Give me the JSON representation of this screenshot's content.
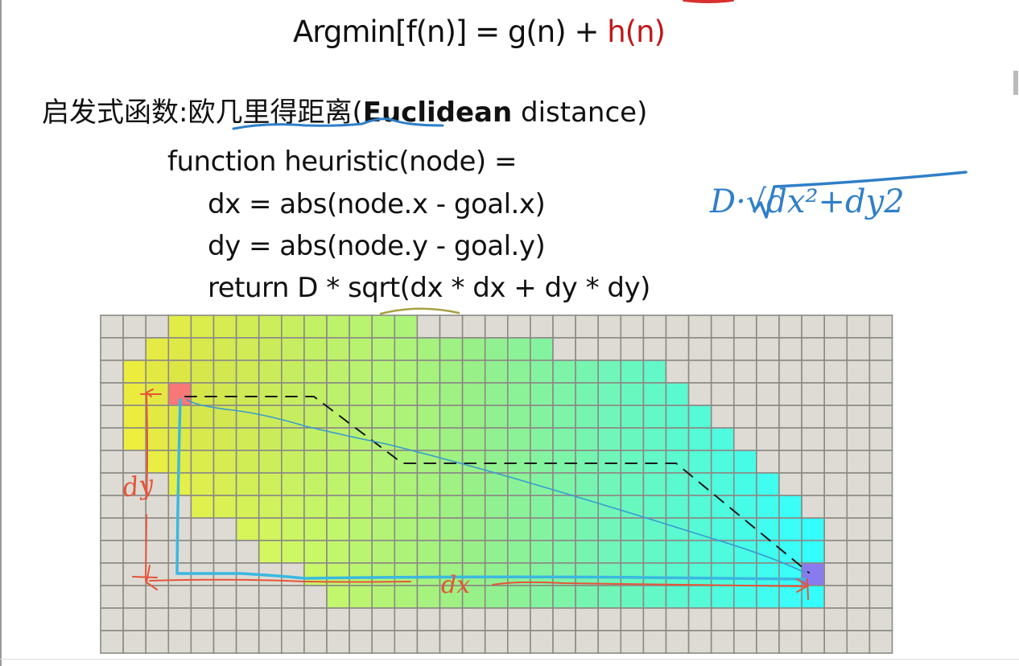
{
  "formula": {
    "lhs": "Argmin[f(n)] = g(n) + ",
    "h_term": "h(n)"
  },
  "heading": {
    "label": "启发式函数:",
    "term": "欧几里得距离",
    "open": "(",
    "english_bold": "Euclidean",
    "english": " distance",
    "close": ")"
  },
  "code": [
    "function heuristic(node) =",
    "dx = abs(node.x - goal.x)",
    "dy = abs(node.y - goal.y)",
    "return D * sqrt(dx * dx + dy * dy)"
  ],
  "annotations": {
    "handwritten_formula": "D·√dx²+dy2",
    "dy_label": "dy",
    "dx_label": "dx"
  },
  "grid": {
    "cols": 35,
    "rows": 15,
    "colored_spans": [
      [
        3,
        13
      ],
      [
        2,
        19
      ],
      [
        1,
        24
      ],
      [
        1,
        25
      ],
      [
        1,
        26
      ],
      [
        1,
        27
      ],
      [
        2,
        28
      ],
      [
        3,
        29
      ],
      [
        4,
        30
      ],
      [
        6,
        31
      ],
      [
        7,
        31
      ],
      [
        9,
        31
      ],
      [
        10,
        31
      ],
      null,
      null
    ],
    "start": {
      "col": 3,
      "row": 3
    },
    "goal": {
      "col": 31,
      "row": 11
    },
    "colors": {
      "empty": "#dedbd4",
      "line": "#8c8a85",
      "start": "#f87878",
      "goal": "#8a7af0",
      "near": "#ffff44",
      "mid": "#98f088",
      "far": "#33ffff"
    }
  },
  "colors": {
    "h_term": "#c01818",
    "pen_blue": "#2f7fc8",
    "pen_red": "#e4553a",
    "path_blue": "#3ab8e0"
  }
}
